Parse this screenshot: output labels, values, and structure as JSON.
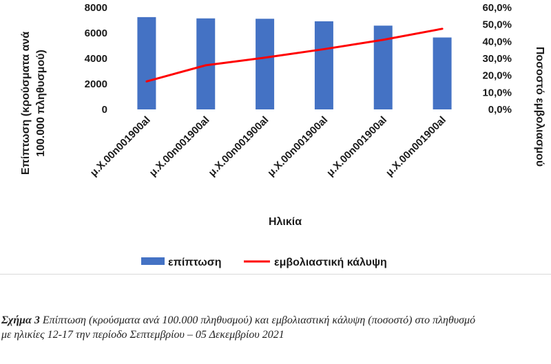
{
  "chart_data": {
    "type": "bar+line",
    "categories": [
      "μ.Χ.00n001900al",
      "μ.Χ.00n001900al",
      "μ.Χ.00n001900al",
      "μ.Χ.00n001900al",
      "μ.Χ.00n001900al",
      "μ.Χ.00n001900al"
    ],
    "series": [
      {
        "name": "επίπτωση",
        "type": "bar",
        "axis": "left",
        "color": "#4472c4",
        "values": [
          7250,
          7150,
          7120,
          6920,
          6580,
          5650
        ]
      },
      {
        "name": "εμβολιαστική κάλυψη",
        "type": "line",
        "axis": "right",
        "color": "#ff0000",
        "values": [
          16.5,
          26.0,
          30.5,
          35.5,
          41.0,
          47.5
        ]
      }
    ],
    "xlabel": "Ηλικία",
    "ylabel": "Επίπτωση (κρούσματα ανά 100.000 πληθυσμού)",
    "ylabel_lines": [
      "Επίπτωση (κρούσματα ανά",
      "100.000 πληθυσμού)"
    ],
    "y2label": "Ποσοστό εμβολιασμού",
    "ylim": [
      0,
      8000
    ],
    "y2lim": [
      0,
      60
    ],
    "y_ticks": [
      "0",
      "2000",
      "4000",
      "6000",
      "8000"
    ],
    "y2_ticks": [
      "0,0%",
      "10,0%",
      "20,0%",
      "30,0%",
      "40,0%",
      "50,0%",
      "60,0%"
    ],
    "legend_position": "bottom",
    "grid": false
  },
  "caption": {
    "label": "Σχήμα 3",
    "text": "Επίπτωση (κρούσματα ανά 100.000 πληθυσμού) και εμβολιαστική κάλυψη (ποσοστό) στο πληθυσμό με ηλικίες 12-17 την περίοδο Σεπτεμβρίου – 05 Δεκεμβρίου 2021"
  }
}
